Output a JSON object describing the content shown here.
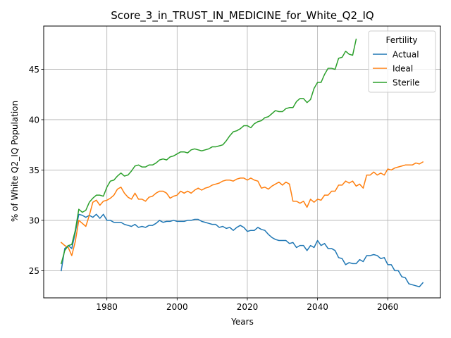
{
  "chart_data": {
    "type": "line",
    "title": "Score_3_in_TRUST_IN_MEDICINE_for_White_Q2_IQ",
    "xlabel": "Years",
    "ylabel": "% of White Q2_IQ Population",
    "xlim": [
      1962,
      2075
    ],
    "ylim": [
      22.3,
      49.3
    ],
    "xticks": [
      1980,
      2000,
      2020,
      2040,
      2060
    ],
    "yticks": [
      25,
      30,
      35,
      40,
      45
    ],
    "grid": true,
    "legend": {
      "title": "Fertility",
      "position": "top-right"
    },
    "series": [
      {
        "name": "Actual",
        "color": "#1f77b4",
        "points": [
          [
            1967,
            25.0
          ],
          [
            1968,
            27.2
          ],
          [
            1969,
            27.5
          ],
          [
            1970,
            27.2
          ],
          [
            1971,
            28.8
          ],
          [
            1972,
            30.6
          ],
          [
            1973,
            30.5
          ],
          [
            1974,
            30.3
          ],
          [
            1975,
            30.5
          ],
          [
            1976,
            30.3
          ],
          [
            1977,
            30.6
          ],
          [
            1978,
            30.2
          ],
          [
            1979,
            30.6
          ],
          [
            1980,
            30.0
          ],
          [
            1981,
            30.0
          ],
          [
            1982,
            29.8
          ],
          [
            1983,
            29.8
          ],
          [
            1984,
            29.8
          ],
          [
            1985,
            29.6
          ],
          [
            1986,
            29.5
          ],
          [
            1987,
            29.4
          ],
          [
            1988,
            29.6
          ],
          [
            1989,
            29.3
          ],
          [
            1990,
            29.4
          ],
          [
            1991,
            29.3
          ],
          [
            1992,
            29.5
          ],
          [
            1993,
            29.5
          ],
          [
            1994,
            29.7
          ],
          [
            1995,
            30.0
          ],
          [
            1996,
            29.8
          ],
          [
            1997,
            29.9
          ],
          [
            1998,
            29.9
          ],
          [
            1999,
            30.0
          ],
          [
            2000,
            29.9
          ],
          [
            2001,
            29.9
          ],
          [
            2002,
            29.9
          ],
          [
            2003,
            30.0
          ],
          [
            2004,
            30.0
          ],
          [
            2005,
            30.1
          ],
          [
            2006,
            30.1
          ],
          [
            2007,
            29.9
          ],
          [
            2008,
            29.8
          ],
          [
            2009,
            29.7
          ],
          [
            2010,
            29.6
          ],
          [
            2011,
            29.6
          ],
          [
            2012,
            29.3
          ],
          [
            2013,
            29.4
          ],
          [
            2014,
            29.2
          ],
          [
            2015,
            29.3
          ],
          [
            2016,
            29.0
          ],
          [
            2017,
            29.3
          ],
          [
            2018,
            29.5
          ],
          [
            2019,
            29.3
          ],
          [
            2020,
            28.9
          ],
          [
            2021,
            29.0
          ],
          [
            2022,
            29.0
          ],
          [
            2023,
            29.3
          ],
          [
            2024,
            29.1
          ],
          [
            2025,
            29.0
          ],
          [
            2026,
            28.6
          ],
          [
            2027,
            28.3
          ],
          [
            2028,
            28.1
          ],
          [
            2029,
            28.0
          ],
          [
            2030,
            28.0
          ],
          [
            2031,
            28.0
          ],
          [
            2032,
            27.7
          ],
          [
            2033,
            27.8
          ],
          [
            2034,
            27.3
          ],
          [
            2035,
            27.5
          ],
          [
            2036,
            27.5
          ],
          [
            2037,
            27.0
          ],
          [
            2038,
            27.5
          ],
          [
            2039,
            27.3
          ],
          [
            2040,
            28.0
          ],
          [
            2041,
            27.5
          ],
          [
            2042,
            27.7
          ],
          [
            2043,
            27.2
          ],
          [
            2044,
            27.2
          ],
          [
            2045,
            27.0
          ],
          [
            2046,
            26.3
          ],
          [
            2047,
            26.2
          ],
          [
            2048,
            25.6
          ],
          [
            2049,
            25.8
          ],
          [
            2050,
            25.7
          ],
          [
            2051,
            25.7
          ],
          [
            2052,
            26.1
          ],
          [
            2053,
            25.9
          ],
          [
            2054,
            26.5
          ],
          [
            2055,
            26.5
          ],
          [
            2056,
            26.6
          ],
          [
            2057,
            26.5
          ],
          [
            2058,
            26.2
          ],
          [
            2059,
            26.3
          ],
          [
            2060,
            25.6
          ],
          [
            2061,
            25.6
          ],
          [
            2062,
            25.0
          ],
          [
            2063,
            25.0
          ],
          [
            2064,
            24.4
          ],
          [
            2065,
            24.3
          ],
          [
            2066,
            23.7
          ],
          [
            2067,
            23.6
          ],
          [
            2068,
            23.5
          ],
          [
            2069,
            23.4
          ],
          [
            2070,
            23.8
          ]
        ]
      },
      {
        "name": "Ideal",
        "color": "#ff7f0e",
        "points": [
          [
            1967,
            27.8
          ],
          [
            1968,
            27.5
          ],
          [
            1969,
            27.3
          ],
          [
            1970,
            26.5
          ],
          [
            1971,
            27.9
          ],
          [
            1972,
            30.0
          ],
          [
            1973,
            29.7
          ],
          [
            1974,
            29.4
          ],
          [
            1975,
            30.5
          ],
          [
            1976,
            31.8
          ],
          [
            1977,
            32.0
          ],
          [
            1978,
            31.5
          ],
          [
            1979,
            31.9
          ],
          [
            1980,
            32.0
          ],
          [
            1981,
            32.2
          ],
          [
            1982,
            32.5
          ],
          [
            1983,
            33.1
          ],
          [
            1984,
            33.3
          ],
          [
            1985,
            32.7
          ],
          [
            1986,
            32.3
          ],
          [
            1987,
            32.1
          ],
          [
            1988,
            32.7
          ],
          [
            1989,
            32.1
          ],
          [
            1990,
            32.1
          ],
          [
            1991,
            31.9
          ],
          [
            1992,
            32.3
          ],
          [
            1993,
            32.4
          ],
          [
            1994,
            32.7
          ],
          [
            1995,
            32.9
          ],
          [
            1996,
            32.9
          ],
          [
            1997,
            32.7
          ],
          [
            1998,
            32.2
          ],
          [
            1999,
            32.4
          ],
          [
            2000,
            32.5
          ],
          [
            2001,
            32.9
          ],
          [
            2002,
            32.7
          ],
          [
            2003,
            32.9
          ],
          [
            2004,
            32.7
          ],
          [
            2005,
            33.0
          ],
          [
            2006,
            33.2
          ],
          [
            2007,
            33.0
          ],
          [
            2008,
            33.2
          ],
          [
            2009,
            33.3
          ],
          [
            2010,
            33.5
          ],
          [
            2011,
            33.6
          ],
          [
            2012,
            33.7
          ],
          [
            2013,
            33.9
          ],
          [
            2014,
            34.0
          ],
          [
            2015,
            34.0
          ],
          [
            2016,
            33.9
          ],
          [
            2017,
            34.1
          ],
          [
            2018,
            34.2
          ],
          [
            2019,
            34.2
          ],
          [
            2020,
            34.0
          ],
          [
            2021,
            34.2
          ],
          [
            2022,
            34.0
          ],
          [
            2023,
            33.9
          ],
          [
            2024,
            33.2
          ],
          [
            2025,
            33.3
          ],
          [
            2026,
            33.1
          ],
          [
            2027,
            33.4
          ],
          [
            2028,
            33.6
          ],
          [
            2029,
            33.8
          ],
          [
            2030,
            33.5
          ],
          [
            2031,
            33.8
          ],
          [
            2032,
            33.6
          ],
          [
            2033,
            31.9
          ],
          [
            2034,
            31.9
          ],
          [
            2035,
            31.7
          ],
          [
            2036,
            31.9
          ],
          [
            2037,
            31.3
          ],
          [
            2038,
            32.1
          ],
          [
            2039,
            31.8
          ],
          [
            2040,
            32.1
          ],
          [
            2041,
            32.0
          ],
          [
            2042,
            32.5
          ],
          [
            2043,
            32.5
          ],
          [
            2044,
            32.9
          ],
          [
            2045,
            32.9
          ],
          [
            2046,
            33.5
          ],
          [
            2047,
            33.5
          ],
          [
            2048,
            33.9
          ],
          [
            2049,
            33.7
          ],
          [
            2050,
            33.9
          ],
          [
            2051,
            33.4
          ],
          [
            2052,
            33.6
          ],
          [
            2053,
            33.2
          ],
          [
            2054,
            34.5
          ],
          [
            2055,
            34.5
          ],
          [
            2056,
            34.8
          ],
          [
            2057,
            34.5
          ],
          [
            2058,
            34.7
          ],
          [
            2059,
            34.5
          ],
          [
            2060,
            35.1
          ],
          [
            2061,
            35.0
          ],
          [
            2062,
            35.2
          ],
          [
            2063,
            35.3
          ],
          [
            2064,
            35.4
          ],
          [
            2065,
            35.5
          ],
          [
            2066,
            35.5
          ],
          [
            2067,
            35.5
          ],
          [
            2068,
            35.7
          ],
          [
            2069,
            35.6
          ],
          [
            2070,
            35.8
          ]
        ]
      },
      {
        "name": "Sterile",
        "color": "#2ca02c",
        "points": [
          [
            1967,
            25.7
          ],
          [
            1968,
            27.0
          ],
          [
            1969,
            27.5
          ],
          [
            1970,
            27.6
          ],
          [
            1971,
            29.0
          ],
          [
            1972,
            31.1
          ],
          [
            1973,
            30.8
          ],
          [
            1974,
            31.0
          ],
          [
            1975,
            31.8
          ],
          [
            1976,
            32.2
          ],
          [
            1977,
            32.5
          ],
          [
            1978,
            32.5
          ],
          [
            1979,
            32.4
          ],
          [
            1980,
            33.3
          ],
          [
            1981,
            33.9
          ],
          [
            1982,
            34.0
          ],
          [
            1983,
            34.4
          ],
          [
            1984,
            34.7
          ],
          [
            1985,
            34.4
          ],
          [
            1986,
            34.5
          ],
          [
            1987,
            34.9
          ],
          [
            1988,
            35.4
          ],
          [
            1989,
            35.5
          ],
          [
            1990,
            35.3
          ],
          [
            1991,
            35.3
          ],
          [
            1992,
            35.5
          ],
          [
            1993,
            35.5
          ],
          [
            1994,
            35.7
          ],
          [
            1995,
            36.0
          ],
          [
            1996,
            36.1
          ],
          [
            1997,
            36.0
          ],
          [
            1998,
            36.3
          ],
          [
            1999,
            36.4
          ],
          [
            2000,
            36.6
          ],
          [
            2001,
            36.8
          ],
          [
            2002,
            36.8
          ],
          [
            2003,
            36.7
          ],
          [
            2004,
            37.0
          ],
          [
            2005,
            37.1
          ],
          [
            2006,
            37.0
          ],
          [
            2007,
            36.9
          ],
          [
            2008,
            37.0
          ],
          [
            2009,
            37.1
          ],
          [
            2010,
            37.3
          ],
          [
            2011,
            37.3
          ],
          [
            2012,
            37.4
          ],
          [
            2013,
            37.5
          ],
          [
            2014,
            37.9
          ],
          [
            2015,
            38.4
          ],
          [
            2016,
            38.8
          ],
          [
            2017,
            38.9
          ],
          [
            2018,
            39.1
          ],
          [
            2019,
            39.4
          ],
          [
            2020,
            39.4
          ],
          [
            2021,
            39.2
          ],
          [
            2022,
            39.6
          ],
          [
            2023,
            39.8
          ],
          [
            2024,
            39.9
          ],
          [
            2025,
            40.2
          ],
          [
            2026,
            40.3
          ],
          [
            2027,
            40.6
          ],
          [
            2028,
            40.9
          ],
          [
            2029,
            40.8
          ],
          [
            2030,
            40.8
          ],
          [
            2031,
            41.1
          ],
          [
            2032,
            41.2
          ],
          [
            2033,
            41.2
          ],
          [
            2034,
            41.8
          ],
          [
            2035,
            42.1
          ],
          [
            2036,
            42.1
          ],
          [
            2037,
            41.7
          ],
          [
            2038,
            42.0
          ],
          [
            2039,
            43.1
          ],
          [
            2040,
            43.7
          ],
          [
            2041,
            43.7
          ],
          [
            2042,
            44.5
          ],
          [
            2043,
            45.1
          ],
          [
            2044,
            45.1
          ],
          [
            2045,
            45.0
          ],
          [
            2046,
            46.1
          ],
          [
            2047,
            46.2
          ],
          [
            2048,
            46.8
          ],
          [
            2049,
            46.5
          ],
          [
            2050,
            46.4
          ],
          [
            2051,
            48.0
          ]
        ]
      }
    ]
  }
}
